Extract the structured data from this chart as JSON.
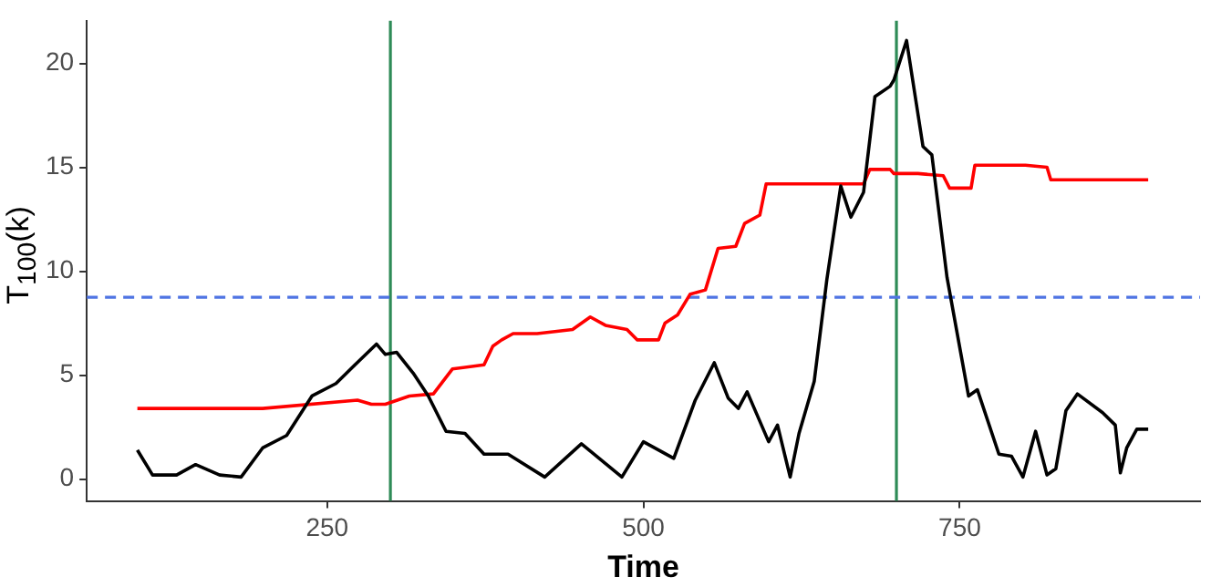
{
  "chart_data": {
    "type": "line",
    "xlabel": "Time",
    "ylabel": "T$_{100}$(k)",
    "xlim": [
      60,
      940
    ],
    "xticks": [
      250,
      500,
      750
    ],
    "ylim": [
      -1.05,
      22.05
    ],
    "yticks": [
      0,
      5,
      10,
      15,
      20
    ],
    "grid": false,
    "marker": "none",
    "line_style": "solid",
    "series": [
      {
        "color": "#000000",
        "x": [
          100,
          112,
          131,
          146,
          165,
          182,
          199,
          218,
          238,
          257,
          272,
          289,
          296,
          305,
          318,
          330,
          344,
          359,
          374,
          393,
          422,
          451,
          483,
          500,
          524,
          541,
          556,
          567,
          575,
          582,
          599,
          606,
          616,
          623,
          635,
          645,
          656,
          664,
          674,
          683,
          695,
          698,
          708,
          721,
          728,
          740,
          757,
          764,
          781,
          791,
          800,
          810,
          819,
          826,
          834,
          843,
          863,
          873,
          877,
          882,
          890,
          899
        ],
        "values": [
          1.4,
          0.2,
          0.2,
          0.7,
          0.2,
          0.1,
          1.5,
          2.1,
          4.0,
          4.6,
          5.5,
          6.5,
          6.0,
          6.1,
          5.1,
          4.0,
          2.3,
          2.2,
          1.2,
          1.2,
          0.1,
          1.7,
          0.1,
          1.8,
          1.0,
          3.8,
          5.6,
          3.9,
          3.4,
          4.2,
          1.8,
          2.6,
          0.1,
          2.2,
          4.7,
          9.6,
          14.1,
          12.6,
          13.8,
          18.4,
          18.9,
          19.2,
          21.1,
          16.0,
          15.6,
          9.7,
          4.0,
          4.3,
          1.2,
          1.1,
          0.1,
          2.3,
          0.2,
          0.5,
          3.3,
          4.1,
          3.2,
          2.6,
          0.3,
          1.5,
          2.4,
          2.4
        ]
      },
      {
        "color": "#ff0000",
        "x": [
          100,
          199,
          274,
          285,
          296,
          315,
          334,
          349,
          374,
          381,
          388,
          397,
          416,
          444,
          458,
          470,
          487,
          495,
          512,
          517,
          527,
          537,
          549,
          559,
          573,
          580,
          592,
          597,
          674,
          679,
          695,
          698,
          717,
          737,
          742,
          759,
          762,
          802,
          819,
          822,
          899
        ],
        "values": [
          3.4,
          3.4,
          3.8,
          3.6,
          3.6,
          4.0,
          4.1,
          5.3,
          5.5,
          6.4,
          6.7,
          7.0,
          7.0,
          7.2,
          7.8,
          7.4,
          7.2,
          6.7,
          6.7,
          7.5,
          7.9,
          8.9,
          9.1,
          11.1,
          11.2,
          12.3,
          12.7,
          14.2,
          14.2,
          14.9,
          14.9,
          14.7,
          14.7,
          14.6,
          14.0,
          14.0,
          15.1,
          15.1,
          15.0,
          14.4,
          14.4
        ]
      }
    ],
    "ref_lines": [
      {
        "axis": "x",
        "value": 300,
        "color": "#2e8b57",
        "line_style": "solid"
      },
      {
        "axis": "x",
        "value": 700,
        "color": "#2e8b57",
        "line_style": "solid"
      },
      {
        "axis": "y",
        "value": 8.75,
        "color": "#4f74e3",
        "line_style": "dashed"
      }
    ]
  }
}
